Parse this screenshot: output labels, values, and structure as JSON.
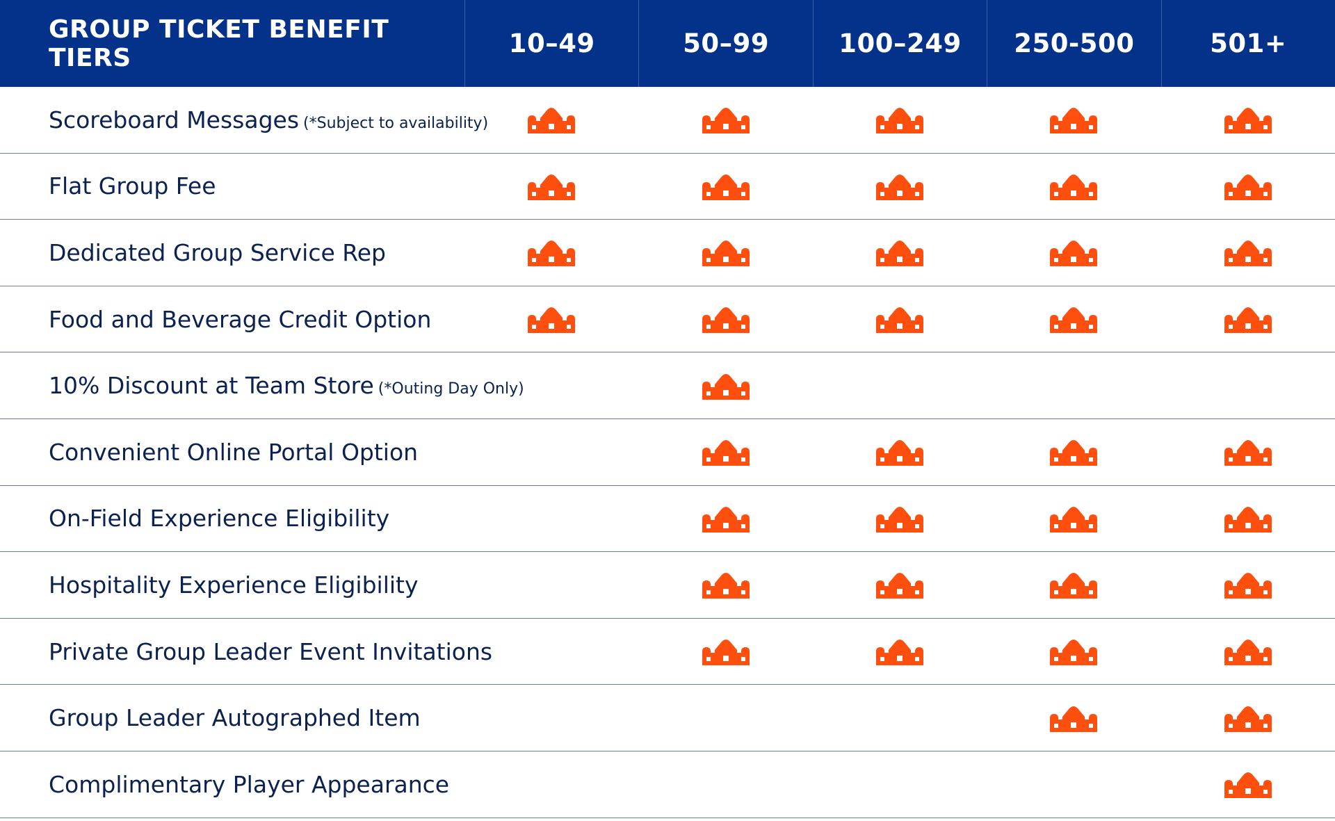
{
  "header": {
    "title": "GROUP TICKET BENEFIT TIERS",
    "tiers": [
      "10–49",
      "50–99",
      "100–249",
      "250-500",
      "501+"
    ]
  },
  "colors": {
    "header_bg": "#04318a",
    "header_text": "#ffffff",
    "label_text": "#0b2150",
    "crown": "#ff4f0f",
    "row_divider": "#6b7a99"
  },
  "mark_icon": "crown-icon",
  "rows": [
    {
      "label": "Scoreboard Messages",
      "note": "(*Subject to availability)",
      "tiers": [
        true,
        true,
        true,
        true,
        true
      ]
    },
    {
      "label": "Flat Group Fee",
      "note": "",
      "tiers": [
        true,
        true,
        true,
        true,
        true
      ]
    },
    {
      "label": "Dedicated Group Service Rep",
      "note": "",
      "tiers": [
        true,
        true,
        true,
        true,
        true
      ]
    },
    {
      "label": "Food and Beverage Credit Option",
      "note": "",
      "tiers": [
        true,
        true,
        true,
        true,
        true
      ]
    },
    {
      "label": "10% Discount at Team Store",
      "note": "(*Outing Day Only)",
      "tiers": [
        false,
        true,
        false,
        false,
        false
      ]
    },
    {
      "label": "Convenient Online Portal Option",
      "note": "",
      "tiers": [
        false,
        true,
        true,
        true,
        true
      ]
    },
    {
      "label": "On-Field Experience Eligibility",
      "note": "",
      "tiers": [
        false,
        true,
        true,
        true,
        true
      ]
    },
    {
      "label": "Hospitality Experience Eligibility",
      "note": "",
      "tiers": [
        false,
        true,
        true,
        true,
        true
      ]
    },
    {
      "label": "Private Group Leader Event Invitations",
      "note": "",
      "tiers": [
        false,
        true,
        true,
        true,
        true
      ]
    },
    {
      "label": "Group Leader Autographed Item",
      "note": "",
      "tiers": [
        false,
        false,
        false,
        true,
        true
      ]
    },
    {
      "label": "Complimentary Player Appearance",
      "note": "",
      "tiers": [
        false,
        false,
        false,
        false,
        true
      ]
    }
  ]
}
